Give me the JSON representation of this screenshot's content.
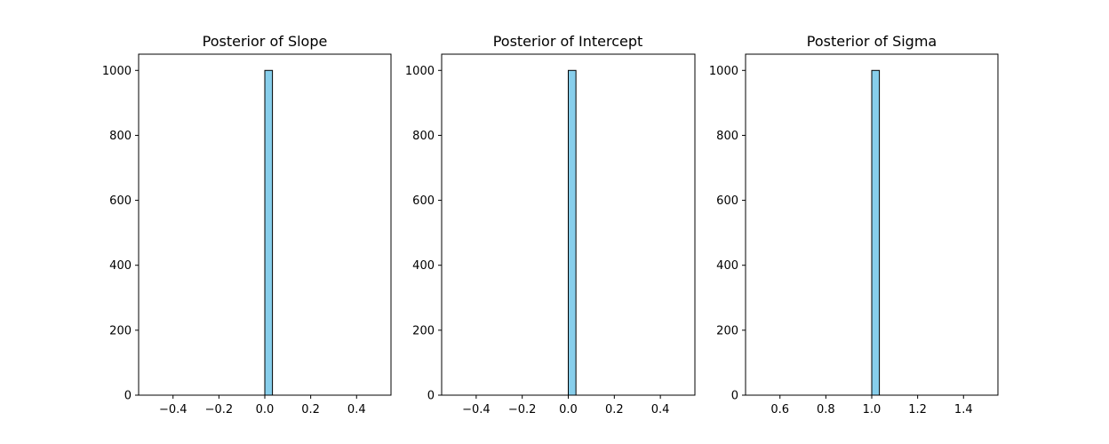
{
  "chart_data": [
    {
      "type": "bar",
      "title": "Posterior of Slope",
      "xlabel": "",
      "ylabel": "",
      "bins": 30,
      "bin_range": [
        -0.5,
        0.5
      ],
      "counts": [
        0,
        0,
        0,
        0,
        0,
        0,
        0,
        0,
        0,
        0,
        0,
        0,
        0,
        0,
        0,
        1000,
        0,
        0,
        0,
        0,
        0,
        0,
        0,
        0,
        0,
        0,
        0,
        0,
        0,
        0
      ],
      "xlim": [
        -0.55,
        0.55
      ],
      "ylim": [
        0,
        1050
      ],
      "xticks": [
        -0.4,
        -0.2,
        0.0,
        0.2,
        0.4
      ],
      "xtick_labels": [
        "−0.4",
        "−0.2",
        "0.0",
        "0.2",
        "0.4"
      ],
      "yticks": [
        0,
        200,
        400,
        600,
        800,
        1000
      ],
      "ytick_labels": [
        "0",
        "200",
        "400",
        "600",
        "800",
        "1000"
      ],
      "bar_color": "#87ceeb",
      "edge_color": "#000000",
      "grid": false
    },
    {
      "type": "bar",
      "title": "Posterior of Intercept",
      "xlabel": "",
      "ylabel": "",
      "bins": 30,
      "bin_range": [
        -0.5,
        0.5
      ],
      "counts": [
        0,
        0,
        0,
        0,
        0,
        0,
        0,
        0,
        0,
        0,
        0,
        0,
        0,
        0,
        0,
        1000,
        0,
        0,
        0,
        0,
        0,
        0,
        0,
        0,
        0,
        0,
        0,
        0,
        0,
        0
      ],
      "xlim": [
        -0.55,
        0.55
      ],
      "ylim": [
        0,
        1050
      ],
      "xticks": [
        -0.4,
        -0.2,
        0.0,
        0.2,
        0.4
      ],
      "xtick_labels": [
        "−0.4",
        "−0.2",
        "0.0",
        "0.2",
        "0.4"
      ],
      "yticks": [
        0,
        200,
        400,
        600,
        800,
        1000
      ],
      "ytick_labels": [
        "0",
        "200",
        "400",
        "600",
        "800",
        "1000"
      ],
      "bar_color": "#87ceeb",
      "edge_color": "#000000",
      "grid": false
    },
    {
      "type": "bar",
      "title": "Posterior of Sigma",
      "xlabel": "",
      "ylabel": "",
      "bins": 30,
      "bin_range": [
        0.5,
        1.5
      ],
      "counts": [
        0,
        0,
        0,
        0,
        0,
        0,
        0,
        0,
        0,
        0,
        0,
        0,
        0,
        0,
        0,
        1000,
        0,
        0,
        0,
        0,
        0,
        0,
        0,
        0,
        0,
        0,
        0,
        0,
        0,
        0
      ],
      "xlim": [
        0.45,
        1.55
      ],
      "ylim": [
        0,
        1050
      ],
      "xticks": [
        0.6,
        0.8,
        1.0,
        1.2,
        1.4
      ],
      "xtick_labels": [
        "0.6",
        "0.8",
        "1.0",
        "1.2",
        "1.4"
      ],
      "yticks": [
        0,
        200,
        400,
        600,
        800,
        1000
      ],
      "ytick_labels": [
        "0",
        "200",
        "400",
        "600",
        "800",
        "1000"
      ],
      "bar_color": "#87ceeb",
      "edge_color": "#000000",
      "grid": false
    }
  ]
}
